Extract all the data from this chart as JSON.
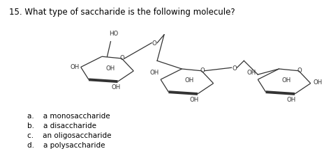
{
  "title": "15. What type of saccharide is the following molecule?",
  "choices": [
    "a.    a monosaccharide",
    "b.    a disaccharide",
    "c.    an oligosaccharide",
    "d.    a polysaccharide"
  ],
  "bg_color": "#ffffff",
  "text_color": "#000000",
  "title_fontsize": 8.5,
  "choice_fontsize": 7.5,
  "lc": "#333333",
  "lw_thin": 0.9,
  "lw_bold": 2.8,
  "label_fontsize": 6.2
}
